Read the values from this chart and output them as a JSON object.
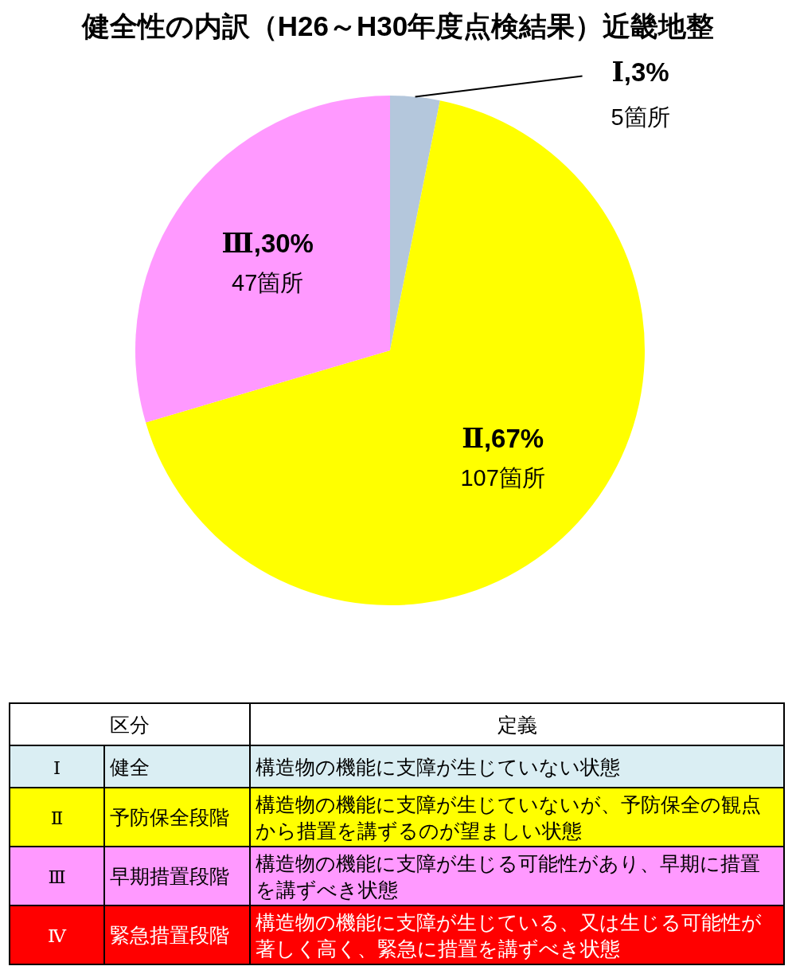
{
  "chart_data": [
    {
      "type": "pie",
      "title": "健全性の内訳（H26～H30年度点検結果）近畿地整",
      "categories": [
        "Ⅰ",
        "Ⅱ",
        "Ⅲ"
      ],
      "values": [
        5,
        107,
        47
      ],
      "colors": [
        "#b4c7dc",
        "#ffff00",
        "#ff99ff"
      ],
      "value_labels": [
        ",3%\n5箇所",
        ",67%\n107箇所",
        ",30%\n47箇所"
      ]
    },
    {
      "type": "other",
      "annotations": [
        "区分",
        "定義",
        "Ⅰ",
        "健全",
        "構造物の機能に支障が生じていない状態",
        "Ⅱ",
        "予防保全段階",
        "構造物の機能に支障が生じていないが、予防保全の観点から措置を講ずるのが望ましい状態",
        "Ⅲ",
        "早期措置段階",
        "構造物の機能に支障が生じる可能性があり、早期に措置を講ずべき状態",
        "Ⅳ",
        "緊急措置段階",
        "構造物の機能に支障が生じている、又は生じる可能性が著しく高く、緊急に措置を講ずべき状態"
      ],
      "colors": [
        "#ffffff",
        "#daeef3",
        "#ffff00",
        "#ff99ff",
        "#ff0000"
      ]
    }
  ]
}
